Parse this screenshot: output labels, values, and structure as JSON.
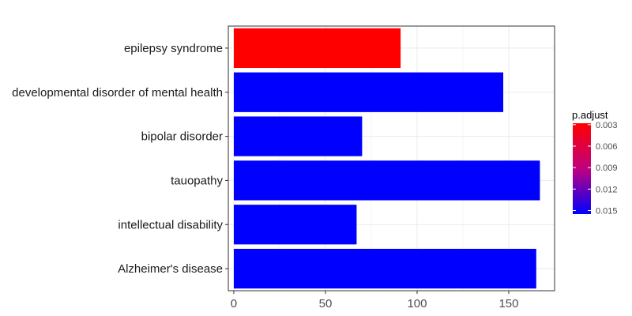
{
  "chart_data": {
    "type": "bar",
    "orientation": "horizontal",
    "categories": [
      "Alzheimer's disease",
      "intellectual disability",
      "tauopathy",
      "bipolar disorder",
      "developmental disorder of mental health",
      "epilepsy syndrome"
    ],
    "values": [
      165,
      67,
      167,
      70,
      147,
      91
    ],
    "p_adjust": [
      0.0155,
      0.0155,
      0.0155,
      0.0155,
      0.0155,
      0.0028
    ],
    "xlim": [
      -3,
      175
    ],
    "xticks": [
      0,
      50,
      100,
      150
    ],
    "xlabel": "",
    "ylabel": "",
    "grid": true,
    "legend": {
      "title": "p.adjust",
      "placement": "right",
      "range": [
        0.0028,
        0.0155
      ],
      "ticks": [
        0.003,
        0.006,
        0.009,
        0.012,
        0.015
      ],
      "tick_labels": [
        "0.003",
        "0.006",
        "0.009",
        "0.012",
        "0.015"
      ],
      "color_low_value": "#ff0000",
      "color_high_value": "#0000ff"
    }
  }
}
